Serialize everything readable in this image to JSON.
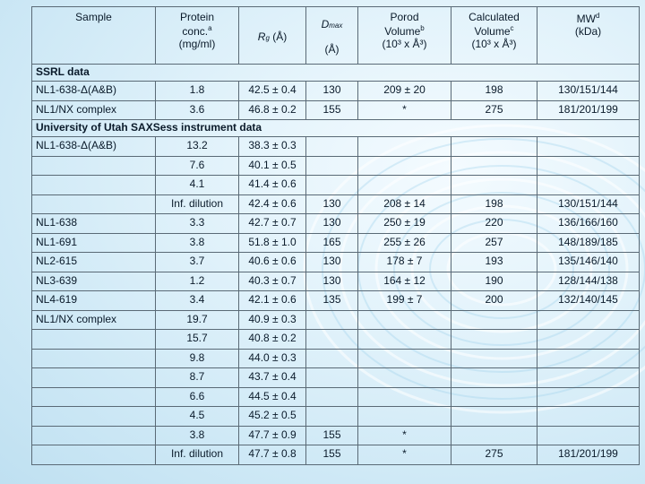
{
  "header": {
    "sample": "Sample",
    "protein_l1": "Protein",
    "protein_l2": "conc.",
    "protein_sup": "a",
    "protein_l3": "(mg/ml)",
    "rg_symbol": "R",
    "rg_sub": "g",
    "rg_unit": " (Å)",
    "dmax_symbol": "D",
    "dmax_sub": "max",
    "dmax_unit": "(Å)",
    "porod_l1": "Porod",
    "porod_l2": "Volume",
    "porod_sup": "b",
    "porod_l3": "(10³ x Å³)",
    "calc_l1": "Calculated",
    "calc_l2": "Volume",
    "calc_sup": "c",
    "calc_l3": "(10³ x Å³)",
    "mw_l1": "MW",
    "mw_sup": "d",
    "mw_l2": "(kDa)"
  },
  "sections": {
    "ssrl": "SSRL data",
    "utah": "University of Utah SAXSess instrument data"
  },
  "ssrl_rows": [
    [
      "NL1-638-Δ(A&B)",
      "1.8",
      "42.5 ± 0.4",
      "130",
      "209 ± 20",
      "198",
      "130/151/144"
    ],
    [
      "NL1/NX complex",
      "3.6",
      "46.8 ± 0.2",
      "155",
      "*",
      "275",
      "181/201/199"
    ]
  ],
  "utah_rows": [
    [
      "NL1-638-Δ(A&B)",
      "13.2",
      "38.3 ± 0.3",
      "",
      "",
      "",
      ""
    ],
    [
      "",
      "7.6",
      "40.1 ± 0.5",
      "",
      "",
      "",
      ""
    ],
    [
      "",
      "4.1",
      "41.4 ± 0.6",
      "",
      "",
      "",
      ""
    ],
    [
      "",
      "Inf. dilution",
      "42.4 ± 0.6",
      "130",
      "208 ± 14",
      "198",
      "130/151/144"
    ],
    [
      "NL1-638",
      "3.3",
      "42.7 ± 0.7",
      "130",
      "250 ± 19",
      "220",
      "136/166/160"
    ],
    [
      "NL1-691",
      "3.8",
      "51.8 ± 1.0",
      "165",
      "255 ± 26",
      "257",
      "148/189/185"
    ],
    [
      "NL2-615",
      "3.7",
      "40.6 ± 0.6",
      "130",
      "178 ±  7",
      "193",
      "135/146/140"
    ],
    [
      "NL3-639",
      "1.2",
      "40.3 ± 0.7",
      "130",
      "164 ± 12",
      "190",
      "128/144/138"
    ],
    [
      "NL4-619",
      "3.4",
      "42.1 ± 0.6",
      "135",
      "199 ±  7",
      "200",
      "132/140/145"
    ],
    [
      "NL1/NX complex",
      "19.7",
      "40.9 ± 0.3",
      "",
      "",
      "",
      ""
    ],
    [
      "",
      "15.7",
      "40.8 ± 0.2",
      "",
      "",
      "",
      ""
    ],
    [
      "",
      "9.8",
      "44.0 ± 0.3",
      "",
      "",
      "",
      ""
    ],
    [
      "",
      "8.7",
      "43.7 ± 0.4",
      "",
      "",
      "",
      ""
    ],
    [
      "",
      "6.6",
      "44.5 ± 0.4",
      "",
      "",
      "",
      ""
    ],
    [
      "",
      "4.5",
      "45.2 ± 0.5",
      "",
      "",
      "",
      ""
    ],
    [
      "",
      "3.8",
      "47.7 ± 0.9",
      "155",
      "*",
      "",
      ""
    ],
    [
      "",
      "Inf. dilution",
      "47.7 ± 0.8",
      "155",
      "*",
      "275",
      "181/201/199"
    ]
  ]
}
